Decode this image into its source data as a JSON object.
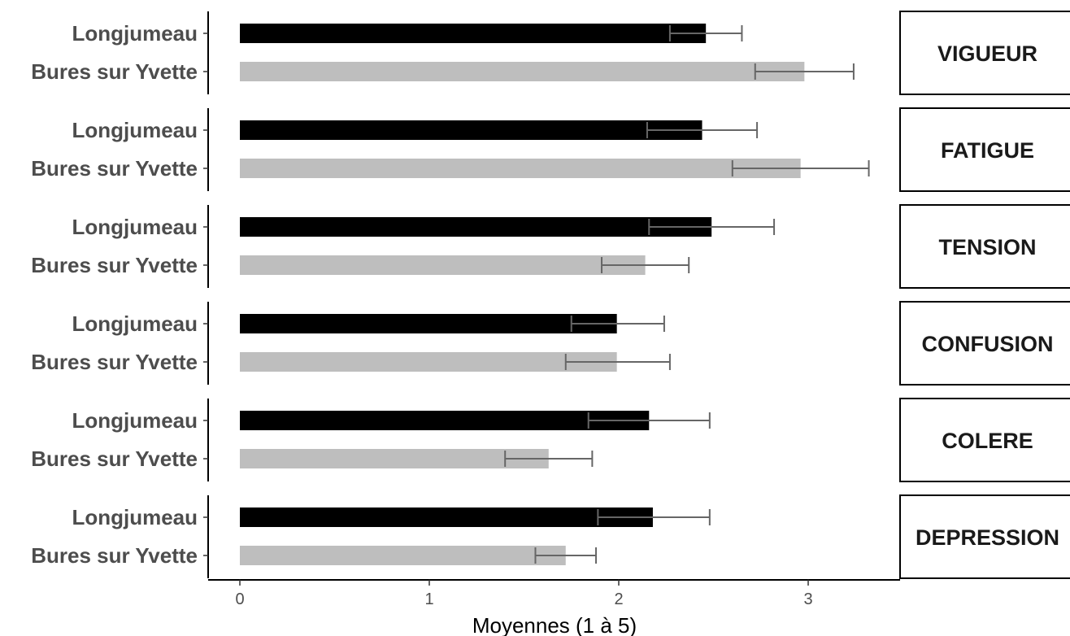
{
  "chart_data": {
    "type": "bar",
    "orientation": "horizontal",
    "facet": "rows",
    "xlabel": "Moyennes (1 à 5)",
    "ylabel": "",
    "xlim": [
      0,
      3.45
    ],
    "xticks": [
      0,
      1,
      2,
      3
    ],
    "grid": false,
    "colors": {
      "Longjumeau": "#000000",
      "Bures sur Yvette": "#bebebe",
      "errorbar": "#666666"
    },
    "panels": [
      {
        "name": "VIGUEUR",
        "bars": [
          {
            "label": "Longjumeau",
            "value": 2.46,
            "ci_low": 2.27,
            "ci_high": 2.65
          },
          {
            "label": "Bures sur Yvette",
            "value": 2.98,
            "ci_low": 2.72,
            "ci_high": 3.24
          }
        ]
      },
      {
        "name": "FATIGUE",
        "bars": [
          {
            "label": "Longjumeau",
            "value": 2.44,
            "ci_low": 2.15,
            "ci_high": 2.73
          },
          {
            "label": "Bures sur Yvette",
            "value": 2.96,
            "ci_low": 2.6,
            "ci_high": 3.32
          }
        ]
      },
      {
        "name": "TENSION",
        "bars": [
          {
            "label": "Longjumeau",
            "value": 2.49,
            "ci_low": 2.16,
            "ci_high": 2.82
          },
          {
            "label": "Bures sur Yvette",
            "value": 2.14,
            "ci_low": 1.91,
            "ci_high": 2.37
          }
        ]
      },
      {
        "name": "CONFUSION",
        "bars": [
          {
            "label": "Longjumeau",
            "value": 1.99,
            "ci_low": 1.75,
            "ci_high": 2.24
          },
          {
            "label": "Bures sur Yvette",
            "value": 1.99,
            "ci_low": 1.72,
            "ci_high": 2.27
          }
        ]
      },
      {
        "name": "COLERE",
        "bars": [
          {
            "label": "Longjumeau",
            "value": 2.16,
            "ci_low": 1.84,
            "ci_high": 2.48
          },
          {
            "label": "Bures sur Yvette",
            "value": 1.63,
            "ci_low": 1.4,
            "ci_high": 1.86
          }
        ]
      },
      {
        "name": "DEPRESSION",
        "bars": [
          {
            "label": "Longjumeau",
            "value": 2.18,
            "ci_low": 1.89,
            "ci_high": 2.48
          },
          {
            "label": "Bures sur Yvette",
            "value": 1.72,
            "ci_low": 1.56,
            "ci_high": 1.88
          }
        ]
      }
    ]
  }
}
